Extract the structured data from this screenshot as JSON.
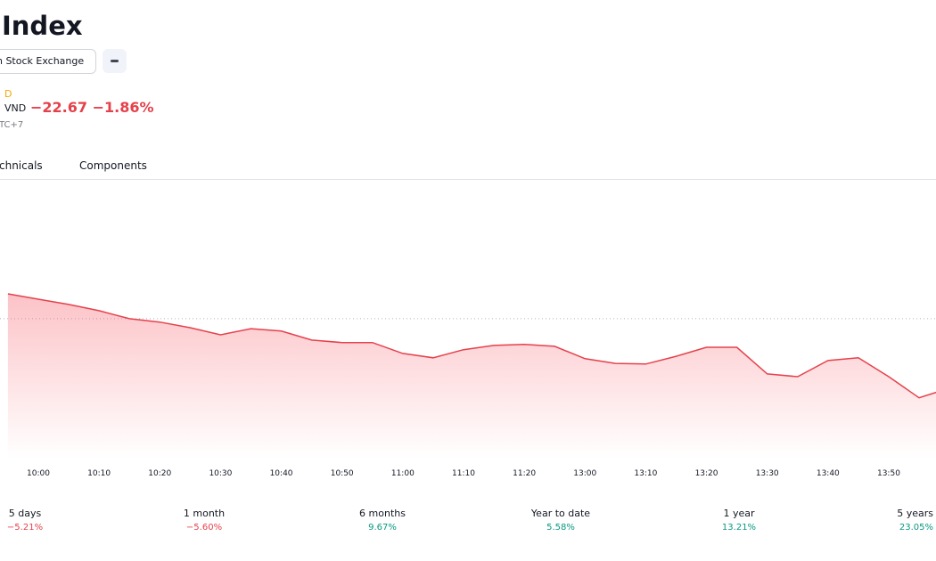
{
  "header": {
    "title": "Index",
    "exchange": "nh Stock Exchange",
    "status": "D",
    "currency": "VND",
    "change": "−22.67 −1.86%",
    "timezone": "TC+7"
  },
  "tabs": [
    "chnicals",
    "Components"
  ],
  "chart_data": {
    "type": "area",
    "color": "#e5414b",
    "categories": [
      null,
      "10:00",
      null,
      "10:10",
      null,
      "10:20",
      null,
      "10:30",
      null,
      "10:40",
      null,
      "10:50",
      null,
      "11:00",
      null,
      "11:10",
      null,
      "11:20",
      null,
      "13:00",
      null,
      "13:10",
      null,
      "13:20",
      null,
      "13:30",
      null,
      "13:40",
      null,
      "13:50",
      null,
      null
    ],
    "values": [
      1226.8,
      1225.1,
      1223.4,
      1221.4,
      1218.8,
      1217.7,
      1215.9,
      1213.6,
      1215.6,
      1214.8,
      1211.9,
      1211.1,
      1211.1,
      1207.6,
      1206.2,
      1208.8,
      1210.2,
      1210.5,
      1209.9,
      1205.9,
      1204.4,
      1204.2,
      1206.7,
      1209.6,
      1209.6,
      1201.0,
      1200.1,
      1205.3,
      1206.2,
      1200.1,
      1193.3,
      1196.4
    ],
    "reference_line": 1218.8,
    "ylim": [
      1173.7,
      1262.7
    ]
  },
  "periods": [
    {
      "label": "5 days",
      "change": "−5.21%"
    },
    {
      "label": "1 month",
      "change": "−5.60%"
    },
    {
      "label": "6 months",
      "change": "9.67%"
    },
    {
      "label": "Year to date",
      "change": "5.58%"
    },
    {
      "label": "1 year",
      "change": "13.21%"
    },
    {
      "label": "5 years",
      "change": "23.05%"
    }
  ]
}
